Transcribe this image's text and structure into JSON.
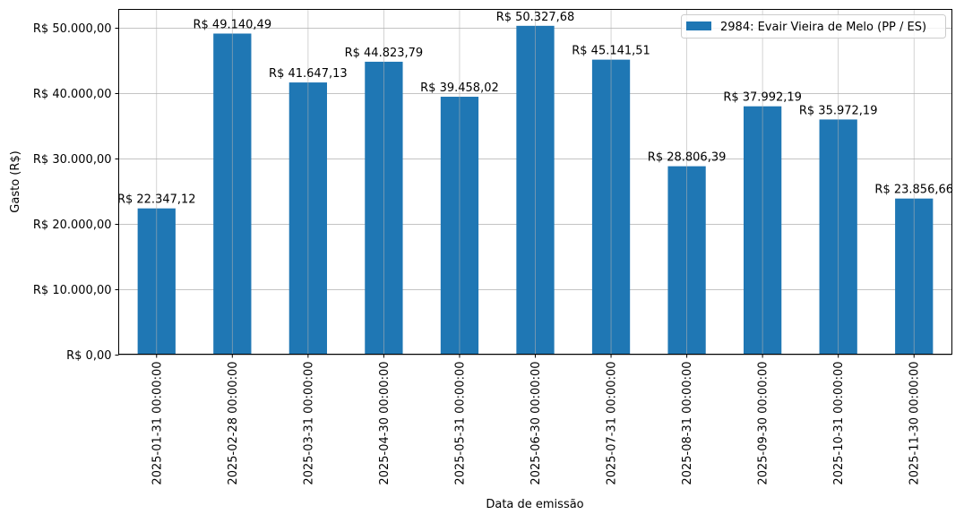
{
  "chart_data": {
    "type": "bar",
    "title": "",
    "xlabel": "Data de emissão",
    "ylabel": "Gasto (R$)",
    "ylim": [
      0,
      52844
    ],
    "grid": true,
    "legend_position": "top-right",
    "bar_color": "#1f77b4",
    "categories": [
      "2025-01-31 00:00:00",
      "2025-02-28 00:00:00",
      "2025-03-31 00:00:00",
      "2025-04-30 00:00:00",
      "2025-05-31 00:00:00",
      "2025-06-30 00:00:00",
      "2025-07-31 00:00:00",
      "2025-08-31 00:00:00",
      "2025-09-30 00:00:00",
      "2025-10-31 00:00:00",
      "2025-11-30 00:00:00"
    ],
    "series": [
      {
        "name": "2984: Evair Vieira de Melo (PP / ES)",
        "values": [
          22347.12,
          49140.49,
          41647.13,
          44823.79,
          39458.02,
          50327.68,
          45141.51,
          28806.39,
          37992.19,
          35972.19,
          23856.66
        ],
        "data_labels": [
          "R$ 22.347,12",
          "R$ 49.140,49",
          "R$ 41.647,13",
          "R$ 44.823,79",
          "R$ 39.458,02",
          "R$ 50.327,68",
          "R$ 45.141,51",
          "R$ 28.806,39",
          "R$ 37.992,19",
          "R$ 35.972,19",
          "R$ 23.856,66"
        ]
      }
    ],
    "y_ticks": [
      0,
      10000,
      20000,
      30000,
      40000,
      50000
    ],
    "y_tick_labels": [
      "R$ 0,00",
      "R$ 10.000,00",
      "R$ 20.000,00",
      "R$ 30.000,00",
      "R$ 40.000,00",
      "R$ 50.000,00"
    ]
  }
}
